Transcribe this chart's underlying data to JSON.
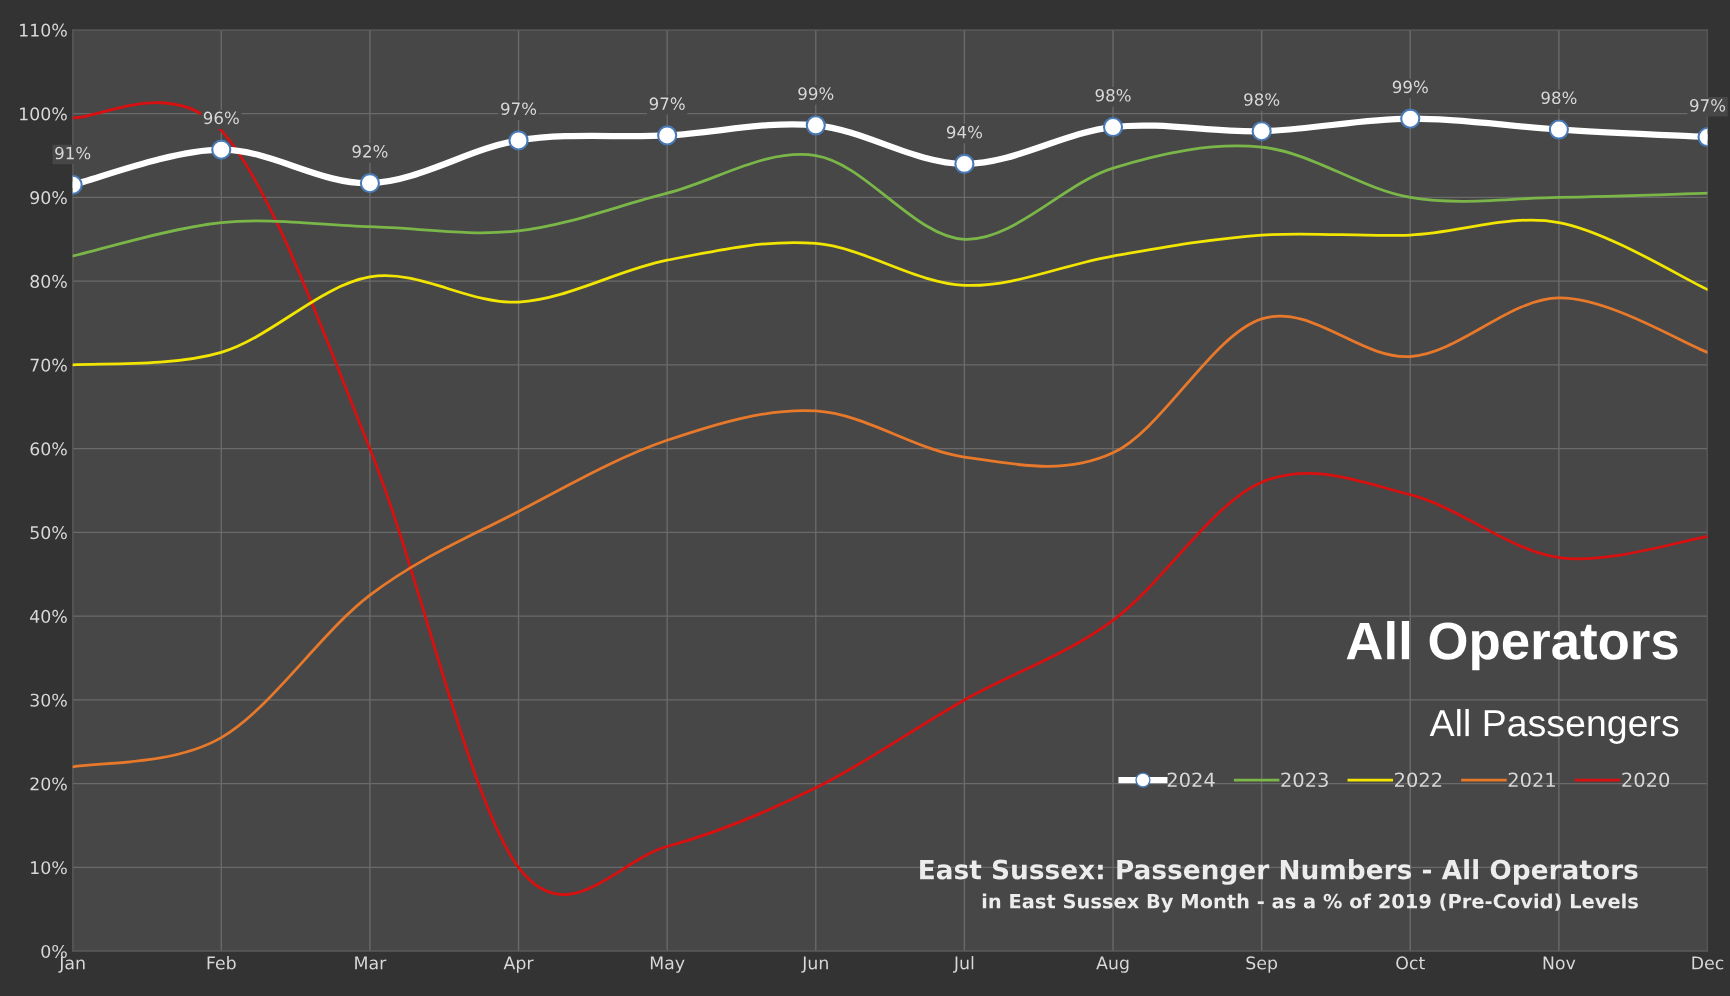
{
  "chart_data": {
    "type": "line",
    "title": "All Operators",
    "subtitle": "All Passengers",
    "annotations": [
      "East Sussex: Passenger Numbers - All Operators",
      "in East Sussex By Month - as a % of 2019 (Pre-Covid) Levels"
    ],
    "categories": [
      "Jan",
      "Feb",
      "Mar",
      "Apr",
      "May",
      "Jun",
      "Jul",
      "Aug",
      "Sep",
      "Oct",
      "Nov",
      "Dec"
    ],
    "series": [
      {
        "name": "2024",
        "color": "#ffffff",
        "marker": "circle",
        "values": [
          91.5,
          95.7,
          91.7,
          96.8,
          97.4,
          98.6,
          94.0,
          98.4,
          97.9,
          99.4,
          98.1,
          97.2
        ],
        "value_labels": [
          "91%",
          "96%",
          "92%",
          "97%",
          "97%",
          "99%",
          "94%",
          "98%",
          "98%",
          "99%",
          "98%",
          "97%"
        ]
      },
      {
        "name": "2023",
        "color": "#7ab648",
        "values": [
          83,
          87,
          86.5,
          86,
          90.5,
          95,
          85,
          93.5,
          96,
          90,
          90,
          90.5
        ]
      },
      {
        "name": "2022",
        "color": "#f2e600",
        "values": [
          70,
          71.5,
          80.5,
          77.5,
          82.5,
          84.5,
          79.5,
          83,
          85.5,
          85.5,
          87,
          79
        ]
      },
      {
        "name": "2021",
        "color": "#e8782a",
        "values": [
          22,
          25.5,
          42.5,
          52.5,
          61,
          64.5,
          59,
          59.5,
          75.5,
          71,
          78,
          71.5
        ]
      },
      {
        "name": "2020",
        "color": "#d81010",
        "values": [
          99.5,
          98,
          60,
          10,
          12.5,
          19.5,
          30,
          39.5,
          56,
          54.5,
          47,
          49.5
        ]
      }
    ],
    "ylim": [
      0,
      110
    ],
    "yticks": [
      {
        "value": 0,
        "label": "0%"
      },
      {
        "value": 10,
        "label": "10%"
      },
      {
        "value": 20,
        "label": "20%"
      },
      {
        "value": 30,
        "label": "30%"
      },
      {
        "value": 40,
        "label": "40%"
      },
      {
        "value": 50,
        "label": "50%"
      },
      {
        "value": 60,
        "label": "60%"
      },
      {
        "value": 70,
        "label": "70%"
      },
      {
        "value": 80,
        "label": "80%"
      },
      {
        "value": 90,
        "label": "90%"
      },
      {
        "value": 100,
        "label": "100%"
      },
      {
        "value": 110,
        "label": "110%"
      }
    ],
    "grid": true,
    "legend": "bottom right"
  }
}
